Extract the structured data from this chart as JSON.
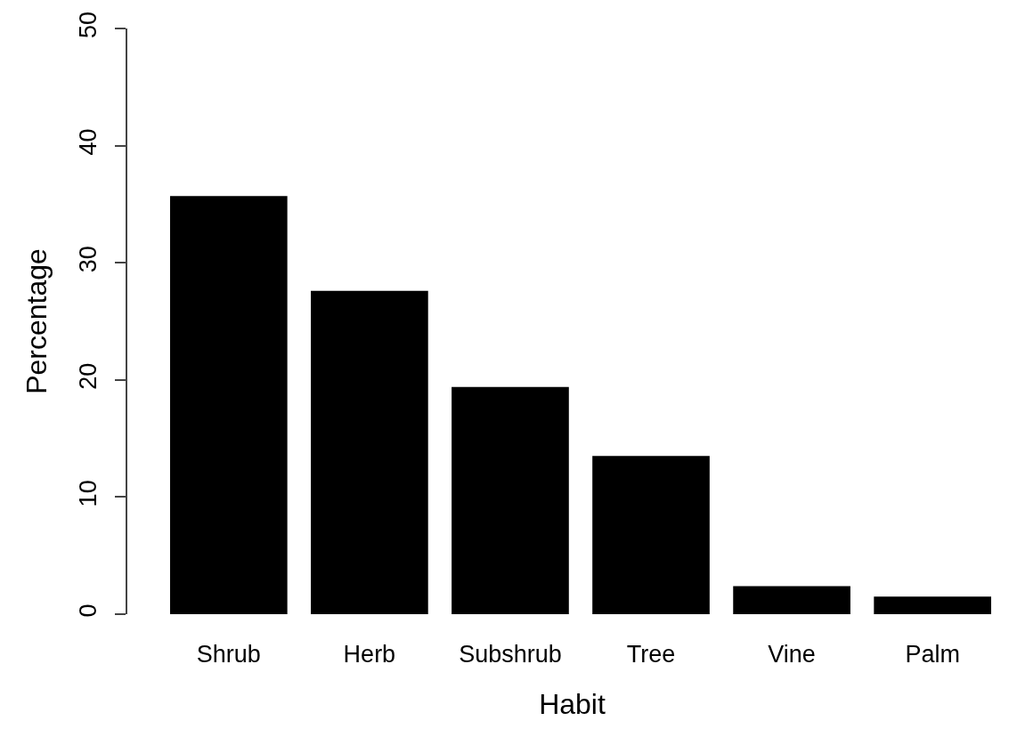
{
  "chart_data": {
    "type": "bar",
    "xlabel": "Habit",
    "ylabel": "Percentage",
    "categories": [
      "Shrub",
      "Herb",
      "Subshrub",
      "Tree",
      "Vine",
      "Palm"
    ],
    "values": [
      35.7,
      27.6,
      19.4,
      13.5,
      2.4,
      1.5
    ],
    "color": "#000000",
    "ylim": [
      0,
      50
    ],
    "yticks": [
      0,
      10,
      20,
      30,
      40,
      50
    ],
    "grid": false
  }
}
